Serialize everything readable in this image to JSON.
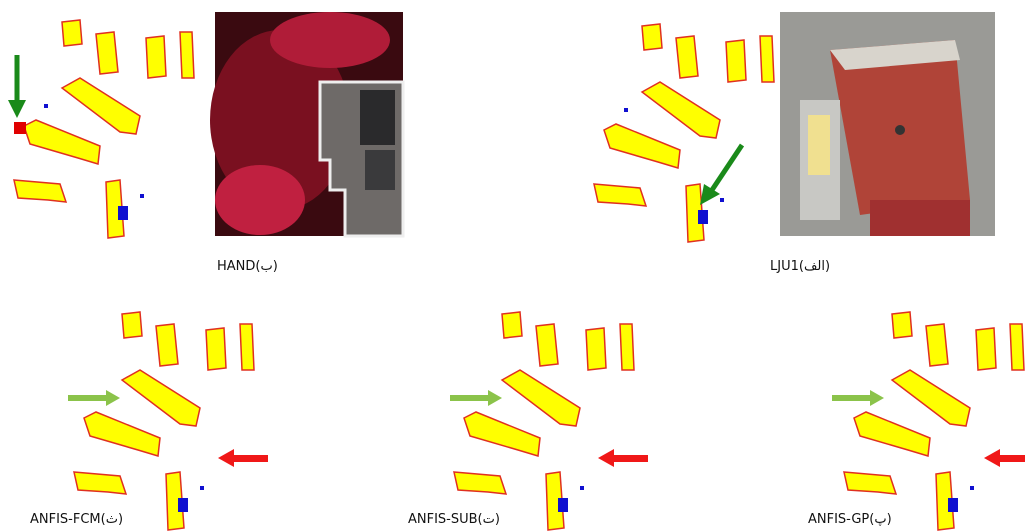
{
  "figure": {
    "panels": [
      {
        "caption": "HAND(ب)"
      },
      {
        "caption": "LJU1(الف)"
      },
      {
        "caption": "ANFIS-FCM(ث)"
      },
      {
        "caption": "ANFIS-SUB(ت)"
      },
      {
        "caption": "ANFIS-GP(پ)"
      }
    ]
  }
}
